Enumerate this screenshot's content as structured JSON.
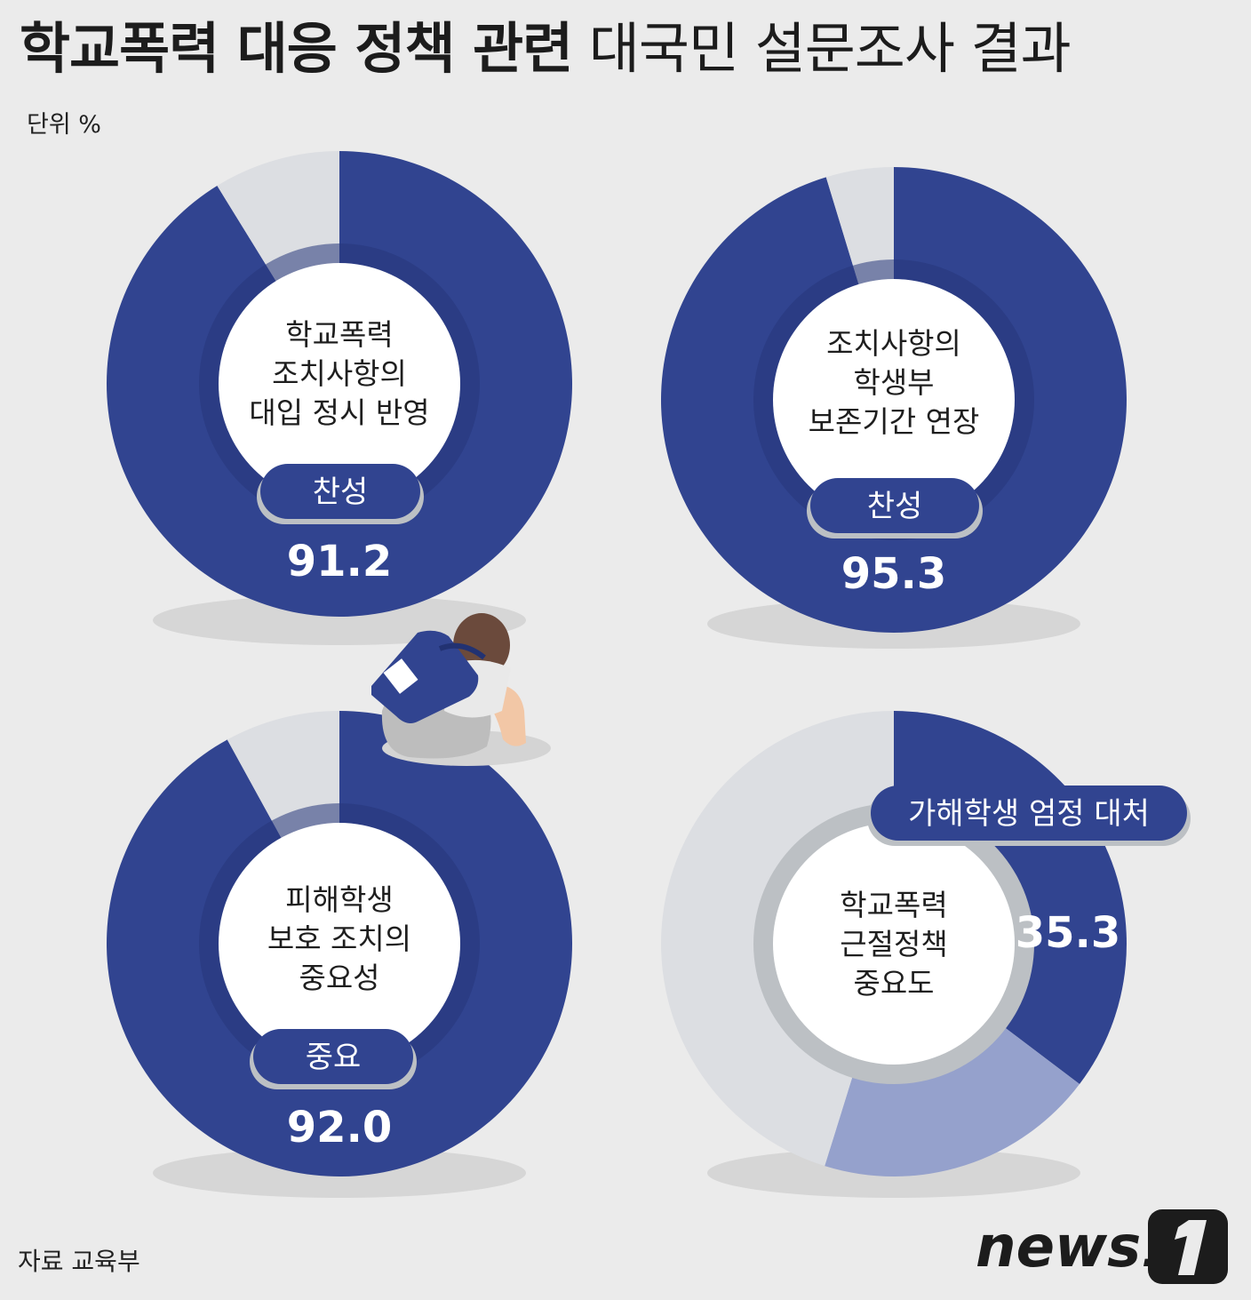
{
  "title_bold": "학교폭력 대응 정책 관련",
  "title_rest": "대국민 설문조사 결과",
  "unit": "단위 %",
  "source": "자료 교육부",
  "logo": "news1",
  "colors": {
    "navy": "#314490",
    "light_blue": "#95a1cc",
    "grey": "#dcdee2",
    "ring_grey": "#bcc0c4",
    "white": "#ffffff"
  },
  "chart_data": [
    {
      "type": "pie",
      "center_label": [
        "학교폭력",
        "조치사항의",
        "대입 정시 반영"
      ],
      "category": "찬성",
      "value": 91.2,
      "value_label": "91.2",
      "slices": [
        {
          "label": "찬성",
          "value": 91.2
        },
        {
          "value": 8.8
        }
      ]
    },
    {
      "type": "pie",
      "center_label": [
        "조치사항의",
        "학생부",
        "보존기간 연장"
      ],
      "category": "찬성",
      "value": 95.3,
      "value_label": "95.3",
      "slices": [
        {
          "label": "찬성",
          "value": 95.3
        },
        {
          "value": 4.7
        }
      ]
    },
    {
      "type": "pie",
      "center_label": [
        "피해학생",
        "보호 조치의",
        "중요성"
      ],
      "category": "중요",
      "value": 92.0,
      "value_label": "92.0",
      "slices": [
        {
          "label": "중요",
          "value": 92.0
        },
        {
          "value": 8.0
        }
      ]
    },
    {
      "type": "pie",
      "center_label": [
        "학교폭력",
        "근절정책",
        "중요도"
      ],
      "category": "가해학생 엄정 대처",
      "value": 35.3,
      "value_label": "35.3",
      "slices": [
        {
          "label": "가해학생 엄정 대처",
          "value": 35.3
        },
        {
          "value": 19.5
        },
        {
          "value": 45.2
        }
      ]
    }
  ]
}
